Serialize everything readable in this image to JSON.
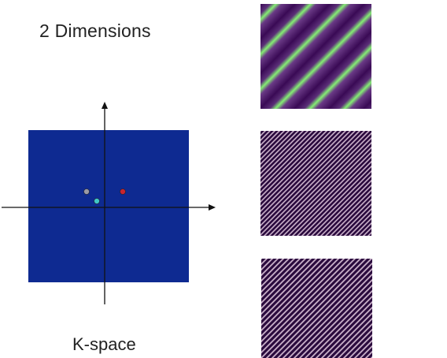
{
  "title": "2 Dimensions",
  "caption": "K-space",
  "colors": {
    "kspace_fill": "#0e2a91",
    "axis": "#111111",
    "wave_dark": "#3a0a55",
    "wave_bright": "#84ee73",
    "stripe_a": "#c9b0c9",
    "stripe_b": "#2b0b3e"
  },
  "kspace_points": [
    {
      "name": "gray-point",
      "color": "#9a9aa6"
    },
    {
      "name": "teal-point",
      "color": "#40c7c7"
    },
    {
      "name": "red-point",
      "color": "#c8242e"
    }
  ],
  "wave_panels": [
    {
      "name": "low-frequency-wave-panel",
      "pattern": "smooth diagonal stripes"
    },
    {
      "name": "high-frequency-wave-panel-1",
      "pattern": "fine diagonal stripes"
    },
    {
      "name": "high-frequency-wave-panel-2",
      "pattern": "fine diagonal stripes"
    }
  ]
}
